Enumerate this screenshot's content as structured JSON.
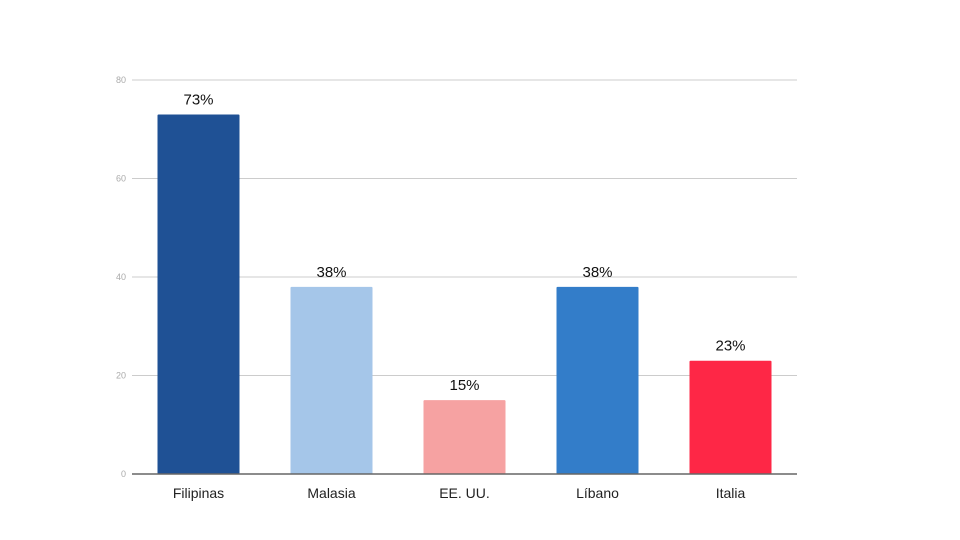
{
  "chart_data": {
    "type": "bar",
    "title": "",
    "xlabel": "",
    "ylabel": "",
    "categories": [
      "Filipinas",
      "Malasia",
      "EE. UU.",
      "Líbano",
      "Italia"
    ],
    "values": [
      73,
      38,
      15,
      38,
      23
    ],
    "data_labels": [
      "73%",
      "38%",
      "15%",
      "38%",
      "23%"
    ],
    "colors": [
      "#1f5195",
      "#a5c6e9",
      "#f6a2a2",
      "#337dc9",
      "#fe2746"
    ],
    "ylim": [
      0,
      80
    ],
    "yticks": [
      0,
      20,
      40,
      60,
      80
    ],
    "grid": true,
    "legend": "none"
  }
}
